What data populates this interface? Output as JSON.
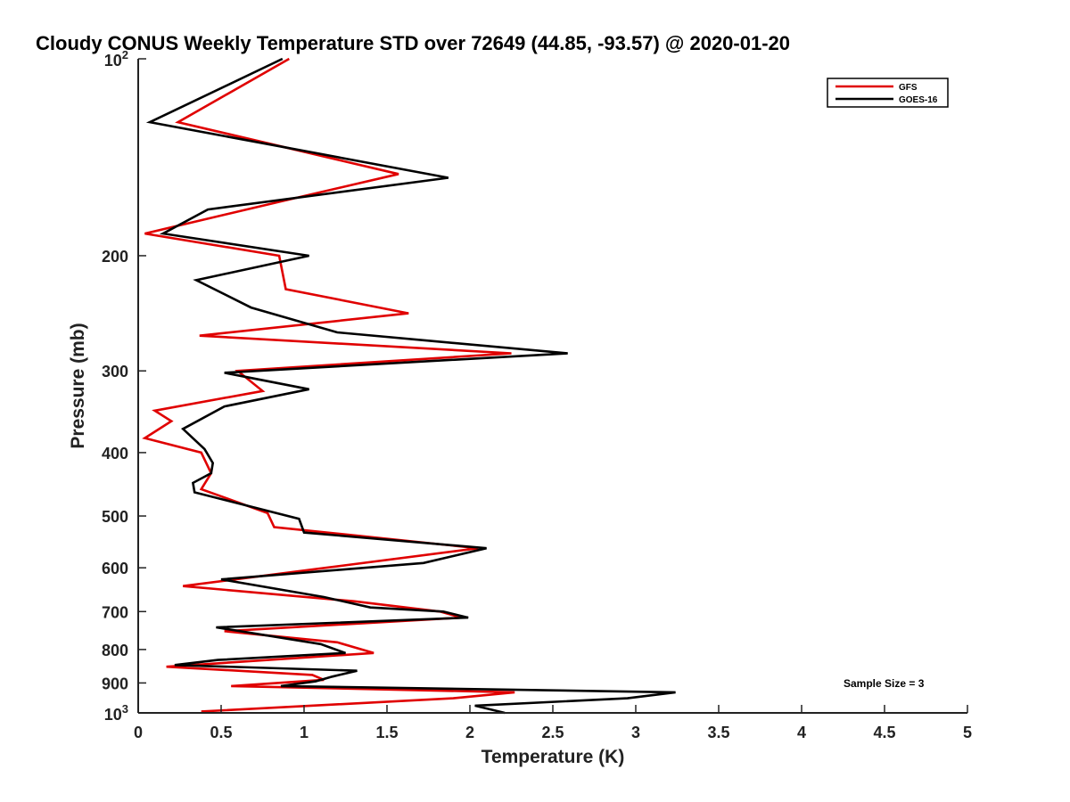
{
  "chart_data": {
    "type": "line",
    "title": "Cloudy CONUS Weekly Temperature STD over 72649 (44.85, -93.57) @ 2020-01-20",
    "xlabel": "Temperature (K)",
    "ylabel": "Pressure (mb)",
    "xlim": [
      0,
      5
    ],
    "ylim": [
      100,
      1000
    ],
    "y_scale": "log",
    "y_reversed": true,
    "x_ticks": [
      0,
      0.5,
      1,
      1.5,
      2,
      2.5,
      3,
      3.5,
      4,
      4.5,
      5
    ],
    "x_tick_labels": [
      "0",
      "0.5",
      "1",
      "1.5",
      "2",
      "2.5",
      "3",
      "3.5",
      "4",
      "4.5",
      "5"
    ],
    "y_ticks": [
      200,
      300,
      400,
      500,
      600,
      700,
      800,
      900
    ],
    "y_tick_labels": [
      "200",
      "300",
      "400",
      "500",
      "600",
      "700",
      "800",
      "900"
    ],
    "y_power_ticks": [
      {
        "value": 100,
        "base": "10",
        "exp": "2"
      },
      {
        "value": 1000,
        "base": "10",
        "exp": "3"
      }
    ],
    "legend_position": "top-right",
    "grid": false,
    "series": [
      {
        "name": "GFS",
        "color": "#e00000",
        "points": [
          [
            0.91,
            100
          ],
          [
            0.24,
            125
          ],
          [
            1.57,
            150
          ],
          [
            0.87,
            165
          ],
          [
            0.04,
            185
          ],
          [
            0.85,
            200
          ],
          [
            0.89,
            225
          ],
          [
            1.63,
            245
          ],
          [
            0.37,
            265
          ],
          [
            2.25,
            282
          ],
          [
            0.6,
            300
          ],
          [
            0.75,
            322
          ],
          [
            0.1,
            345
          ],
          [
            0.2,
            358
          ],
          [
            0.04,
            380
          ],
          [
            0.38,
            400
          ],
          [
            0.44,
            430
          ],
          [
            0.38,
            455
          ],
          [
            0.78,
            495
          ],
          [
            0.82,
            520
          ],
          [
            2.05,
            560
          ],
          [
            0.27,
            640
          ],
          [
            1.3,
            675
          ],
          [
            1.82,
            700
          ],
          [
            1.95,
            715
          ],
          [
            0.52,
            750
          ],
          [
            1.2,
            780
          ],
          [
            1.42,
            810
          ],
          [
            0.17,
            850
          ],
          [
            1.05,
            875
          ],
          [
            1.12,
            890
          ],
          [
            0.56,
            910
          ],
          [
            2.27,
            930
          ],
          [
            1.9,
            950
          ],
          [
            0.38,
            995
          ]
        ]
      },
      {
        "name": "GOES-16",
        "color": "#000000",
        "points": [
          [
            0.87,
            100
          ],
          [
            0.07,
            125
          ],
          [
            1.87,
            152
          ],
          [
            0.42,
            170
          ],
          [
            0.15,
            185
          ],
          [
            1.03,
            200
          ],
          [
            0.35,
            218
          ],
          [
            0.68,
            240
          ],
          [
            1.2,
            262
          ],
          [
            2.59,
            282
          ],
          [
            0.52,
            302
          ],
          [
            1.03,
            320
          ],
          [
            0.52,
            340
          ],
          [
            0.27,
            368
          ],
          [
            0.4,
            395
          ],
          [
            0.45,
            415
          ],
          [
            0.44,
            430
          ],
          [
            0.33,
            445
          ],
          [
            0.34,
            460
          ],
          [
            0.97,
            505
          ],
          [
            1.0,
            530
          ],
          [
            2.1,
            560
          ],
          [
            1.72,
            590
          ],
          [
            0.5,
            625
          ],
          [
            1.12,
            665
          ],
          [
            1.4,
            690
          ],
          [
            1.84,
            700
          ],
          [
            1.99,
            715
          ],
          [
            0.47,
            740
          ],
          [
            1.1,
            785
          ],
          [
            1.25,
            810
          ],
          [
            0.48,
            830
          ],
          [
            0.22,
            845
          ],
          [
            1.32,
            862
          ],
          [
            1.17,
            880
          ],
          [
            1.07,
            895
          ],
          [
            0.86,
            910
          ],
          [
            3.24,
            930
          ],
          [
            2.95,
            950
          ],
          [
            2.03,
            975
          ],
          [
            2.21,
            1000
          ]
        ]
      }
    ],
    "annotations": [
      "Sample Size = 3"
    ]
  }
}
